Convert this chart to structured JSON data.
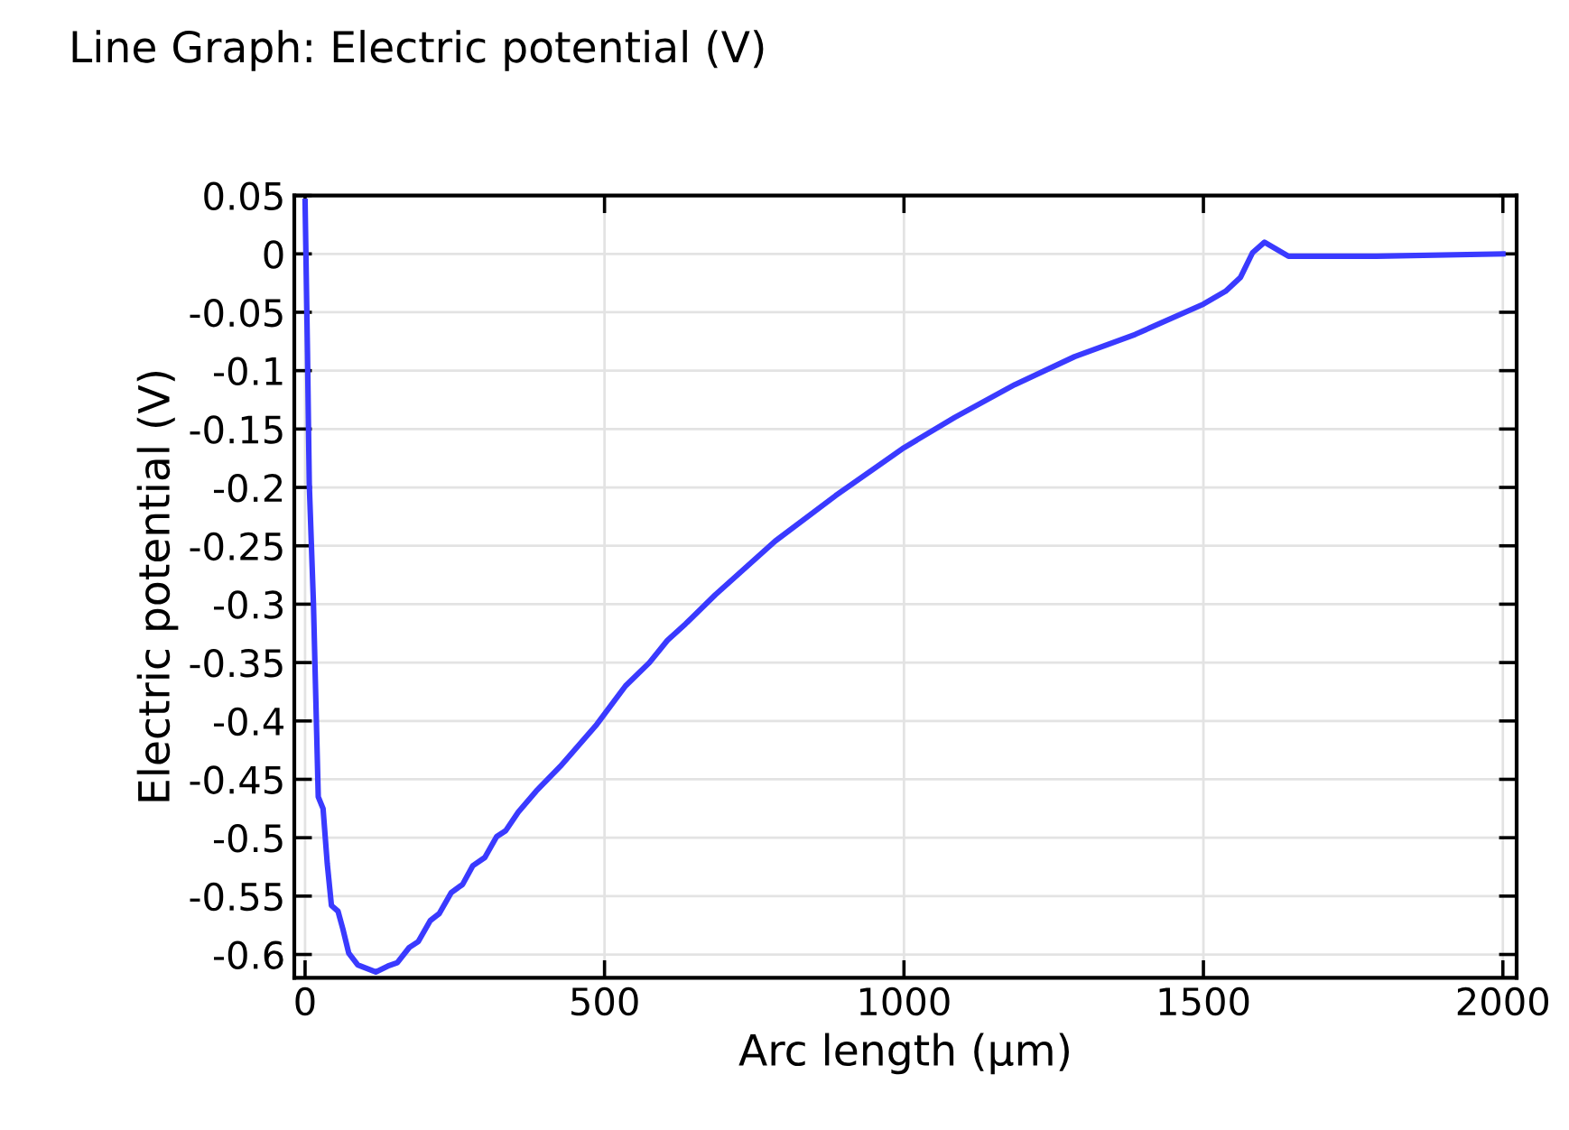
{
  "chart_data": {
    "type": "line",
    "title": "Line Graph: Electric potential (V)",
    "xlabel": "Arc length (µm)",
    "ylabel": "Electric potential (V)",
    "xlim": [
      -18,
      2023
    ],
    "ylim": [
      -0.62,
      0.05
    ],
    "xticks": [
      0,
      500,
      1000,
      1500,
      2000
    ],
    "yticks": [
      0.05,
      0,
      -0.05,
      -0.1,
      -0.15,
      -0.2,
      -0.25,
      -0.3,
      -0.35,
      -0.4,
      -0.45,
      -0.5,
      -0.55,
      -0.6
    ],
    "grid": true,
    "marker": "none",
    "line_style": "solid",
    "series": [
      {
        "color": "#3a3aff",
        "x": [
          0,
          4,
          7,
          14,
          22,
          30,
          37,
          44,
          55,
          63,
          73,
          88,
          118,
          138,
          154,
          174,
          189,
          209,
          224,
          244,
          263,
          280,
          300,
          320,
          335,
          356,
          386,
          426,
          487,
          535,
          575,
          605,
          635,
          685,
          785,
          886,
          1000,
          1085,
          1185,
          1285,
          1386,
          1500,
          1537,
          1562,
          1582,
          1602,
          1622,
          1642,
          1789,
          2000
        ],
        "values": [
          0.045,
          -0.084,
          -0.197,
          -0.3,
          -0.465,
          -0.475,
          -0.522,
          -0.558,
          -0.563,
          -0.578,
          -0.599,
          -0.609,
          -0.615,
          -0.61,
          -0.607,
          -0.594,
          -0.589,
          -0.571,
          -0.565,
          -0.547,
          -0.54,
          -0.524,
          -0.517,
          -0.499,
          -0.494,
          -0.478,
          -0.46,
          -0.439,
          -0.403,
          -0.37,
          -0.35,
          -0.331,
          -0.317,
          -0.292,
          -0.246,
          -0.207,
          -0.166,
          -0.14,
          -0.112,
          -0.088,
          -0.069,
          -0.043,
          -0.032,
          -0.02,
          0.001,
          0.01,
          0.004,
          -0.002,
          -0.002,
          0.0
        ]
      }
    ]
  }
}
